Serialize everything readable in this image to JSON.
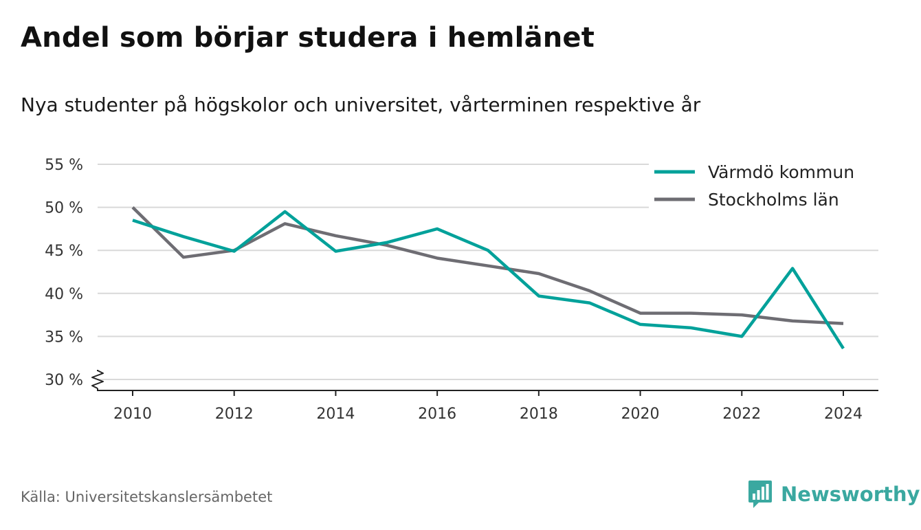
{
  "title": "Andel som börjar studera i hemlänet",
  "subtitle": "Nya studenter på högskolor och universitet, vårterminen respektive år",
  "source": "Källa: Universitetskanslersämbetet",
  "brand": {
    "name": "Newsworthy",
    "icon": "newsworthy-logo-icon",
    "color": "#3aa8a0"
  },
  "chart_data": {
    "type": "line",
    "x": [
      2010,
      2011,
      2012,
      2013,
      2014,
      2015,
      2016,
      2017,
      2018,
      2019,
      2020,
      2021,
      2022,
      2023,
      2024
    ],
    "xticks": [
      2010,
      2012,
      2014,
      2016,
      2018,
      2020,
      2022,
      2024
    ],
    "yticks": [
      30,
      35,
      40,
      45,
      50,
      55
    ],
    "ytick_labels": [
      "30 %",
      "35 %",
      "40 %",
      "45 %",
      "50 %",
      "55 %"
    ],
    "ylim": [
      30,
      55
    ],
    "grid": true,
    "legend": "top-right",
    "axis_break": true,
    "series": [
      {
        "name": "Värmdö kommun",
        "color": "#00a19a",
        "values": [
          48.5,
          46.6,
          44.9,
          49.5,
          44.9,
          45.9,
          47.5,
          45.0,
          39.7,
          38.9,
          36.4,
          36.0,
          35.0,
          42.9,
          33.6
        ]
      },
      {
        "name": "Stockholms län",
        "color": "#6e6d73",
        "values": [
          50.0,
          44.2,
          45.0,
          48.1,
          46.7,
          45.6,
          44.1,
          43.2,
          42.3,
          40.3,
          37.7,
          37.7,
          37.5,
          36.8,
          36.5
        ]
      }
    ]
  }
}
